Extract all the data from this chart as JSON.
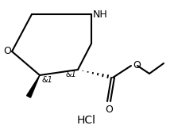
{
  "bg_color": "#ffffff",
  "fig_width": 2.19,
  "fig_height": 1.68,
  "dpi": 100,
  "line_color": "#000000",
  "line_width": 1.5,
  "font_size_label": 9,
  "font_size_stereo": 7,
  "font_size_hcl": 10,
  "hcl_text": "HCl",
  "nh_label": "NH",
  "o_ring_label": "O",
  "o_ester_label": "O",
  "stereo1": "&1",
  "stereo2": "&1"
}
